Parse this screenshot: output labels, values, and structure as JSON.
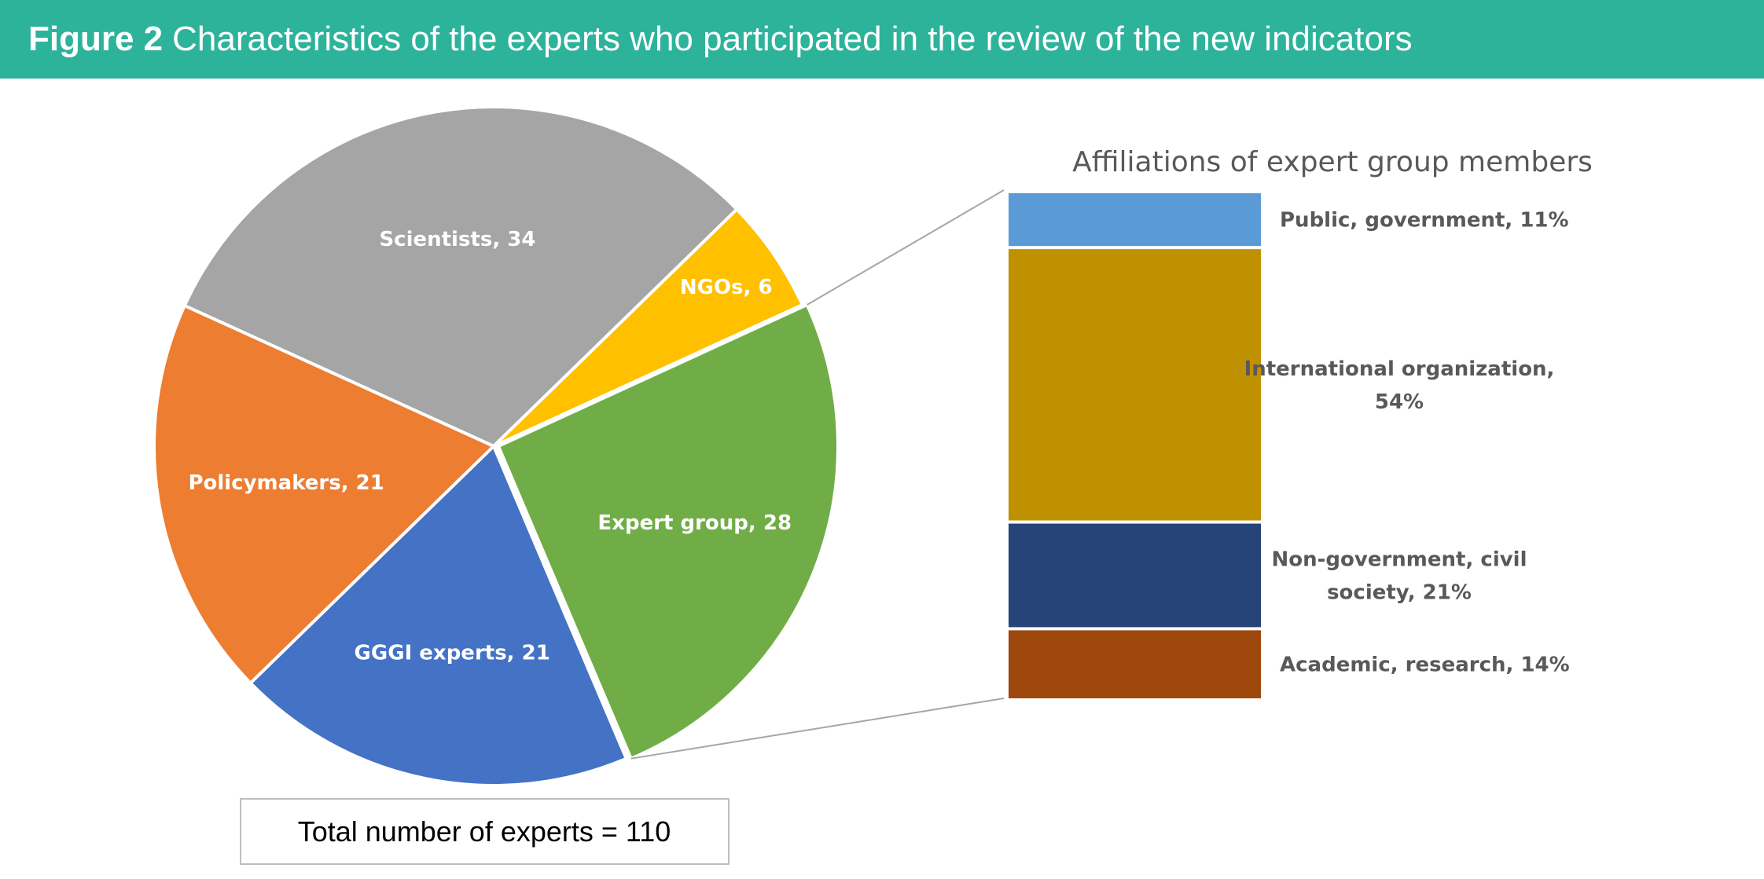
{
  "header": {
    "figure_label": "Figure 2",
    "title": "Characteristics of the experts who participated in the review of the new indicators"
  },
  "colors": {
    "header_bg": "#2eb39b",
    "scientists": "#a5a5a5",
    "ngos": "#ffc000",
    "expert_group": "#70ad47",
    "gggi_experts": "#4472c4",
    "policymakers": "#ed7d31",
    "public_government": "#5b9bd5",
    "international_org": "#bf9000",
    "non_government": "#264478",
    "academic": "#9e480e"
  },
  "total_box": {
    "text": "Total number of experts = 110"
  },
  "chart_data": [
    {
      "type": "pie",
      "title": "",
      "unit": "experts",
      "slices": [
        {
          "name": "Scientists",
          "value": 34,
          "label": "Scientists, 34",
          "color": "#a5a5a5"
        },
        {
          "name": "NGOs",
          "value": 6,
          "label": "NGOs, 6",
          "color": "#ffc000"
        },
        {
          "name": "Expert group",
          "value": 28,
          "label": "Expert group, 28",
          "color": "#70ad47"
        },
        {
          "name": "GGGI experts",
          "value": 21,
          "label": "GGGI experts, 21",
          "color": "#4472c4"
        },
        {
          "name": "Policymakers",
          "value": 21,
          "label": "Policymakers, 21",
          "color": "#ed7d31"
        }
      ],
      "total": 110,
      "exploded_slice": "Expert group"
    },
    {
      "type": "bar",
      "title": "Affiliations of expert group members",
      "stacked": true,
      "unit": "%",
      "segments": [
        {
          "name": "Public, government",
          "value": 11,
          "label_lines": [
            "Public, government, 11%"
          ],
          "color": "#5b9bd5"
        },
        {
          "name": "International organization",
          "value": 54,
          "label_lines": [
            "International organization,",
            "54%"
          ],
          "color": "#bf9000"
        },
        {
          "name": "Non-government, civil society",
          "value": 21,
          "label_lines": [
            "Non-government, civil",
            "society, 21%"
          ],
          "color": "#264478"
        },
        {
          "name": "Academic, research",
          "value": 14,
          "label_lines": [
            "Academic, research, 14%"
          ],
          "color": "#9e480e"
        }
      ]
    }
  ]
}
